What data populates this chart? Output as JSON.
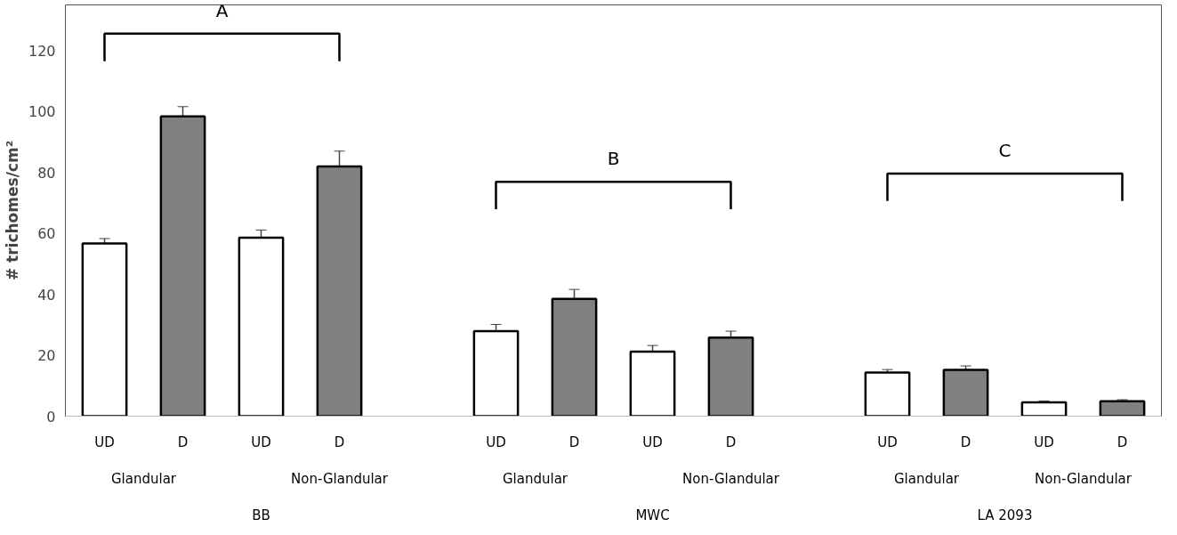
{
  "chart_data": {
    "type": "bar",
    "ylabel": "# trichomes/cm²",
    "categories": [
      "UD",
      "D",
      "UD",
      "D",
      null,
      "UD",
      "D",
      "UD",
      "D",
      null,
      "UD",
      "D",
      "UD",
      "D"
    ],
    "values": [
      56.7,
      98.4,
      58.6,
      82,
      null,
      27.9,
      38.5,
      21.2,
      25.8,
      null,
      14.3,
      15.2,
      4.5,
      4.9
    ],
    "errors": [
      1.6,
      3.2,
      2.5,
      5,
      null,
      2.2,
      3.1,
      2,
      2.1,
      null,
      1,
      1.3,
      0.5,
      0.5
    ],
    "colors": [
      "#ffffff",
      "#808080",
      "#ffffff",
      "#808080",
      "#ffffff",
      "#ffffff",
      "#808080",
      "#ffffff",
      "#808080",
      "#ffffff",
      "#ffffff",
      "#808080",
      "#ffffff",
      "#808080"
    ],
    "ylim": [
      0,
      135
    ],
    "yticks": [
      0,
      20,
      40,
      60,
      80,
      100,
      120
    ],
    "grid": false,
    "annotations": [
      "A",
      "B",
      "C",
      "Glandular",
      "Non-Glandular",
      "Glandular",
      "Non-Glandular",
      "Glandular",
      "Non-Glandular",
      "BB",
      "MWC",
      "LA 2093"
    ]
  }
}
